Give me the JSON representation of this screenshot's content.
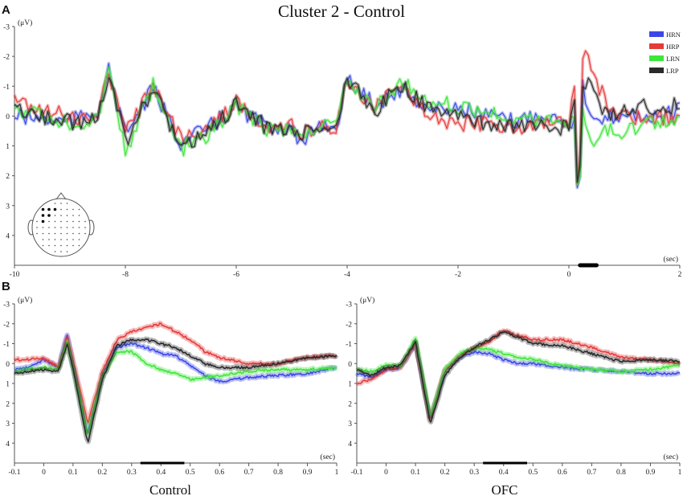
{
  "title": "Cluster 2 - Control",
  "panel_labels": [
    "A",
    "B"
  ],
  "colors": {
    "HRN": "#3b48e6",
    "HRP": "#e63a3a",
    "LRN": "#3ee63a",
    "LRP": "#2a2a2a",
    "axis": "#555555"
  },
  "chart_data": [
    {
      "type": "line",
      "panel": "A",
      "ylabel": "(μV)",
      "xlabel": "(sec)",
      "ylim": [
        -3,
        5
      ],
      "y_inverted": true,
      "xlim": [
        -10,
        2
      ],
      "x_ticks": [
        -10,
        -8,
        -6,
        -4,
        -2,
        0,
        2
      ],
      "y_ticks": [
        -3,
        -2,
        -1,
        0,
        1,
        2,
        3,
        4
      ],
      "significance_bar": [
        0.2,
        0.5
      ],
      "legend": [
        "HRN",
        "HRP",
        "LRN",
        "LRP"
      ],
      "legend_position": "top-right",
      "head_map": true,
      "series": [
        {
          "name": "HRN",
          "x": [
            -10,
            -9,
            -8.5,
            -8.3,
            -8,
            -7.5,
            -7,
            -6.5,
            -6,
            -5.5,
            -5,
            -4.8,
            -4.5,
            -4.2,
            -4,
            -3.5,
            -3,
            -2.5,
            -2,
            -1.5,
            -1,
            -0.5,
            0,
            0.1,
            0.17,
            0.25,
            0.35,
            0.5,
            0.7,
            1,
            1.3,
            1.6,
            2
          ],
          "y": [
            0,
            0.2,
            -0.2,
            -1.5,
            0.6,
            -0.9,
            0.9,
            0.4,
            -0.3,
            0.3,
            0.4,
            1.1,
            0.2,
            0.4,
            -1.2,
            -0.4,
            -0.9,
            -0.2,
            -0.3,
            0,
            0.2,
            -0.1,
            0.2,
            0.1,
            3.5,
            -1.0,
            0,
            0.3,
            0.1,
            -0.1,
            0,
            0.1,
            -0.2
          ]
        },
        {
          "name": "HRP",
          "x": [
            -10,
            -9,
            -8.5,
            -8.3,
            -8,
            -7.5,
            -7,
            -6.5,
            -6,
            -5.5,
            -5,
            -4.8,
            -4.5,
            -4.2,
            -4,
            -3.5,
            -3,
            -2.5,
            -2,
            -1.5,
            -1,
            -0.5,
            0,
            0.1,
            0.17,
            0.25,
            0.35,
            0.5,
            0.7,
            1,
            1.3,
            1.6,
            2
          ],
          "y": [
            -0.5,
            0,
            0.1,
            -1.5,
            0.6,
            -1.0,
            0.8,
            0.4,
            -0.5,
            0.3,
            0.3,
            0.7,
            0.3,
            0.4,
            -1.1,
            -0.3,
            -1.0,
            0,
            0.3,
            0.2,
            0.4,
            0.3,
            0.3,
            -1.0,
            3.3,
            -1.8,
            -2.1,
            -1.2,
            -0.3,
            0,
            0.1,
            0,
            0.1
          ]
        },
        {
          "name": "LRN",
          "x": [
            -10,
            -9,
            -8.5,
            -8.3,
            -8,
            -7.5,
            -7,
            -6.5,
            -6,
            -5.5,
            -5,
            -4.8,
            -4.5,
            -4.2,
            -4,
            -3.5,
            -3,
            -2.5,
            -2,
            -1.5,
            -1,
            -0.5,
            0,
            0.1,
            0.17,
            0.25,
            0.35,
            0.5,
            0.7,
            1,
            1.3,
            1.6,
            2
          ],
          "y": [
            -0.3,
            0.3,
            0.2,
            -1.5,
            1.2,
            -1.0,
            1.1,
            0.6,
            -0.4,
            0.4,
            0.5,
            0.8,
            0.3,
            0.4,
            -1.1,
            -0.3,
            -1.1,
            -0.5,
            -0.3,
            -0.1,
            0.1,
            0.1,
            0.3,
            0,
            3.2,
            -0.2,
            0.8,
            0.7,
            0.4,
            0.5,
            0.3,
            0.2,
            0
          ]
        },
        {
          "name": "LRP",
          "x": [
            -10,
            -9,
            -8.5,
            -8.3,
            -8,
            -7.5,
            -7,
            -6.5,
            -6,
            -5.5,
            -5,
            -4.8,
            -4.5,
            -4.2,
            -4,
            -3.5,
            -3,
            -2.5,
            -2,
            -1.5,
            -1,
            -0.5,
            0,
            0.1,
            0.17,
            0.25,
            0.35,
            0.5,
            0.7,
            1,
            1.3,
            1.6,
            2
          ],
          "y": [
            -0.2,
            0.2,
            0.1,
            -1.5,
            0.9,
            -0.9,
            1.1,
            0.5,
            -0.4,
            0.3,
            0.5,
            0.6,
            0.3,
            0.4,
            -1.2,
            -0.2,
            -1.0,
            -0.2,
            0.1,
            0.2,
            0.4,
            0.3,
            0.4,
            -0.6,
            3.6,
            -1.0,
            -1.3,
            -0.5,
            0,
            -0.3,
            -0.4,
            -0.2,
            -0.4
          ]
        }
      ]
    },
    {
      "type": "line",
      "panel": "B-left",
      "label": "Control",
      "ylabel": "(μV)",
      "xlabel": "(sec)",
      "ylim": [
        -3,
        5
      ],
      "y_inverted": true,
      "xlim": [
        -0.1,
        1
      ],
      "x_ticks": [
        -0.1,
        0,
        0.1,
        0.2,
        0.3,
        0.4,
        0.5,
        0.6,
        0.7,
        0.8,
        0.9,
        1
      ],
      "y_ticks": [
        -3,
        -2,
        -1,
        0,
        1,
        2,
        3,
        4
      ],
      "significance_bar": [
        0.33,
        0.48
      ],
      "series": [
        {
          "name": "HRN",
          "x": [
            -0.1,
            -0.05,
            0,
            0.05,
            0.08,
            0.1,
            0.15,
            0.2,
            0.25,
            0.3,
            0.35,
            0.4,
            0.45,
            0.5,
            0.55,
            0.6,
            0.7,
            0.8,
            0.9,
            1.0
          ],
          "y": [
            0.3,
            0.2,
            -0.2,
            0.2,
            -1.5,
            0,
            3.5,
            0.6,
            -0.8,
            -1.0,
            -0.8,
            -0.5,
            -0.4,
            0.1,
            0.6,
            0.9,
            0.7,
            0.6,
            0.5,
            0.2
          ]
        },
        {
          "name": "HRP",
          "x": [
            -0.1,
            -0.05,
            0,
            0.05,
            0.08,
            0.1,
            0.15,
            0.2,
            0.25,
            0.3,
            0.35,
            0.4,
            0.45,
            0.5,
            0.55,
            0.6,
            0.7,
            0.8,
            0.9,
            1.0
          ],
          "y": [
            -0.2,
            -0.2,
            -0.3,
            0.2,
            -1.3,
            -0.2,
            3.0,
            0.4,
            -1.2,
            -1.6,
            -1.8,
            -2.0,
            -1.6,
            -1.2,
            -0.6,
            -0.3,
            0,
            0,
            -0.3,
            -0.4
          ]
        },
        {
          "name": "LRN",
          "x": [
            -0.1,
            -0.05,
            0,
            0.05,
            0.08,
            0.1,
            0.15,
            0.2,
            0.25,
            0.3,
            0.35,
            0.4,
            0.45,
            0.5,
            0.55,
            0.6,
            0.7,
            0.8,
            0.9,
            1.0
          ],
          "y": [
            0.4,
            0.3,
            0.2,
            0.3,
            -1.1,
            0.2,
            3.6,
            0.7,
            -0.6,
            -0.6,
            0,
            0.3,
            0.5,
            0.8,
            0.7,
            0.6,
            0.4,
            0.3,
            0.3,
            0.2
          ]
        },
        {
          "name": "LRP",
          "x": [
            -0.1,
            -0.05,
            0,
            0.05,
            0.08,
            0.1,
            0.15,
            0.2,
            0.25,
            0.3,
            0.35,
            0.4,
            0.45,
            0.5,
            0.55,
            0.6,
            0.7,
            0.8,
            0.9,
            1.0
          ],
          "y": [
            0.5,
            0.4,
            0.3,
            0.4,
            -1.0,
            0.3,
            4.0,
            0.8,
            -0.9,
            -1.2,
            -1.2,
            -1.0,
            -0.8,
            -0.4,
            0,
            0.2,
            0.2,
            0,
            -0.3,
            -0.4
          ]
        }
      ]
    },
    {
      "type": "line",
      "panel": "B-right",
      "label": "OFC",
      "ylabel": "(μV)",
      "xlabel": "(sec)",
      "ylim": [
        -3,
        5
      ],
      "y_inverted": true,
      "xlim": [
        -0.1,
        1
      ],
      "x_ticks": [
        -0.1,
        0,
        0.1,
        0.2,
        0.3,
        0.4,
        0.5,
        0.6,
        0.7,
        0.8,
        0.9,
        1
      ],
      "y_ticks": [
        -3,
        -2,
        -1,
        0,
        1,
        2,
        3,
        4
      ],
      "significance_bar": [
        0.33,
        0.48
      ],
      "series": [
        {
          "name": "HRN",
          "x": [
            -0.1,
            -0.05,
            0,
            0.05,
            0.1,
            0.15,
            0.2,
            0.25,
            0.3,
            0.35,
            0.4,
            0.45,
            0.5,
            0.6,
            0.7,
            0.8,
            0.9,
            1.0
          ],
          "y": [
            0.5,
            0.7,
            0.3,
            0.2,
            -1.0,
            2.8,
            0.4,
            -0.3,
            -0.6,
            -0.5,
            -0.2,
            0,
            0,
            0.2,
            0.3,
            0.4,
            0.5,
            0.5
          ]
        },
        {
          "name": "HRP",
          "x": [
            -0.1,
            -0.05,
            0,
            0.05,
            0.1,
            0.15,
            0.2,
            0.25,
            0.3,
            0.35,
            0.4,
            0.45,
            0.5,
            0.6,
            0.7,
            0.8,
            0.9,
            1.0
          ],
          "y": [
            1.0,
            0.8,
            0.3,
            0.2,
            -1.0,
            2.8,
            0.3,
            -0.4,
            -0.8,
            -1.1,
            -1.7,
            -1.4,
            -1.2,
            -1.2,
            -0.8,
            -0.3,
            -0.2,
            0
          ]
        },
        {
          "name": "LRN",
          "x": [
            -0.1,
            -0.05,
            0,
            0.05,
            0.1,
            0.15,
            0.2,
            0.25,
            0.3,
            0.35,
            0.4,
            0.45,
            0.5,
            0.6,
            0.7,
            0.8,
            0.9,
            1.0
          ],
          "y": [
            0.3,
            0.4,
            0.1,
            0.1,
            -1.3,
            2.7,
            0.3,
            -0.5,
            -0.8,
            -0.7,
            -0.5,
            -0.3,
            -0.2,
            0.1,
            0.3,
            0.4,
            0.3,
            0.1
          ]
        },
        {
          "name": "LRP",
          "x": [
            -0.1,
            -0.05,
            0,
            0.05,
            0.1,
            0.15,
            0.2,
            0.25,
            0.3,
            0.35,
            0.4,
            0.45,
            0.5,
            0.6,
            0.7,
            0.8,
            0.9,
            1.0
          ],
          "y": [
            0.3,
            0.6,
            0.2,
            0.1,
            -1.1,
            3.0,
            0.6,
            -0.3,
            -0.8,
            -1.2,
            -1.6,
            -1.3,
            -1.0,
            -0.9,
            -0.5,
            -0.1,
            -0.2,
            -0.1
          ]
        }
      ]
    }
  ]
}
